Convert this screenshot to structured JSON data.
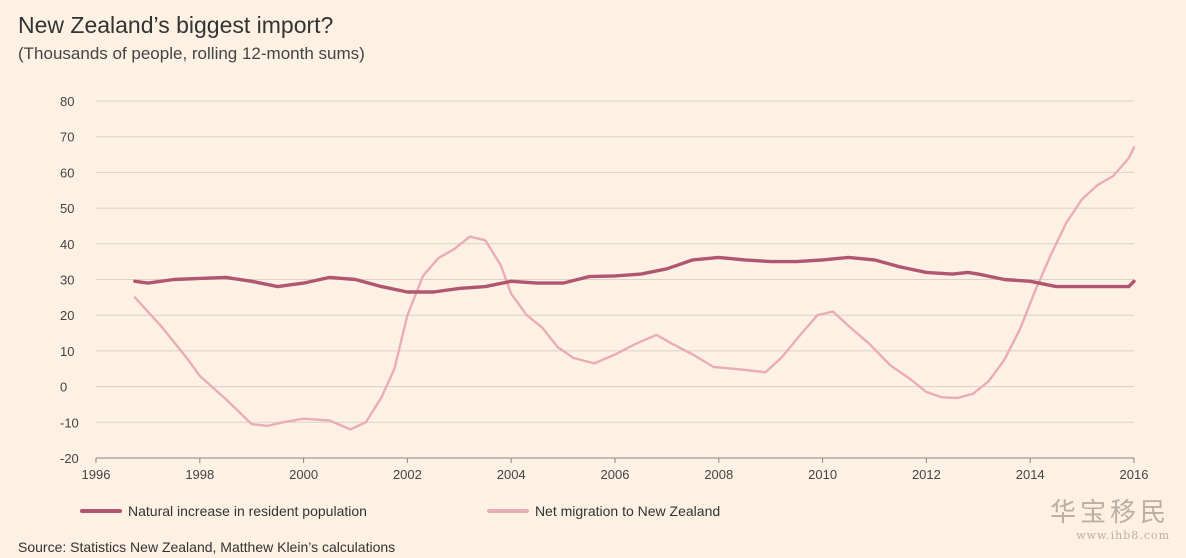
{
  "header": {
    "title": "New Zealand’s biggest import?",
    "subtitle": "(Thousands of people, rolling 12-month sums)"
  },
  "legend": {
    "natural": "Natural increase in resident population",
    "migration": "Net migration to New Zealand"
  },
  "source": "Source: Statistics New Zealand, Matthew Klein’s calculations",
  "watermark": {
    "main": "华宝移民",
    "url": "www.ihb8.com"
  },
  "colors": {
    "natural": "#b05670",
    "migration": "#eaadb5",
    "grid": "#d8d2c8",
    "axis": "#888888"
  },
  "chart_data": {
    "type": "line",
    "title": "New Zealand’s biggest import?",
    "subtitle": "(Thousands of people, rolling 12-month sums)",
    "xlim": [
      1996,
      2016
    ],
    "ylim": [
      -20,
      80
    ],
    "yticks": [
      -20,
      -10,
      0,
      10,
      20,
      30,
      40,
      50,
      60,
      70,
      80
    ],
    "xticks": [
      1996,
      1998,
      2000,
      2002,
      2004,
      2006,
      2008,
      2010,
      2012,
      2014,
      2016
    ],
    "grid": true,
    "legend_position": "bottom",
    "series": [
      {
        "name": "Natural increase in resident population",
        "color": "#b05670",
        "points": [
          [
            1996.75,
            29.5
          ],
          [
            1997.0,
            29
          ],
          [
            1997.5,
            30
          ],
          [
            1998.0,
            30.3
          ],
          [
            1998.5,
            30.6
          ],
          [
            1999.0,
            29.5
          ],
          [
            1999.5,
            28
          ],
          [
            2000.0,
            29
          ],
          [
            2000.5,
            30.6
          ],
          [
            2001.0,
            30
          ],
          [
            2001.5,
            28
          ],
          [
            2002.0,
            26.5
          ],
          [
            2002.5,
            26.5
          ],
          [
            2003.0,
            27.5
          ],
          [
            2003.5,
            28
          ],
          [
            2004.0,
            29.5
          ],
          [
            2004.5,
            29
          ],
          [
            2005.0,
            29
          ],
          [
            2005.5,
            30.8
          ],
          [
            2006.0,
            31
          ],
          [
            2006.5,
            31.5
          ],
          [
            2007.0,
            33
          ],
          [
            2007.5,
            35.5
          ],
          [
            2008.0,
            36.2
          ],
          [
            2008.5,
            35.5
          ],
          [
            2009.0,
            35
          ],
          [
            2009.5,
            35
          ],
          [
            2010.0,
            35.5
          ],
          [
            2010.5,
            36.2
          ],
          [
            2011.0,
            35.5
          ],
          [
            2011.5,
            33.5
          ],
          [
            2012.0,
            32
          ],
          [
            2012.5,
            31.5
          ],
          [
            2012.8,
            32
          ],
          [
            2013.0,
            31.5
          ],
          [
            2013.5,
            30
          ],
          [
            2014.0,
            29.5
          ],
          [
            2014.5,
            28
          ],
          [
            2015.0,
            28
          ],
          [
            2015.5,
            28
          ],
          [
            2015.9,
            28
          ],
          [
            2016.0,
            29.5
          ]
        ]
      },
      {
        "name": "Net migration to New Zealand",
        "color": "#eaadb5",
        "points": [
          [
            1996.75,
            25
          ],
          [
            1997.25,
            17
          ],
          [
            1997.75,
            8
          ],
          [
            1998.0,
            3
          ],
          [
            1998.5,
            -3.5
          ],
          [
            1999.0,
            -10.5
          ],
          [
            1999.3,
            -11
          ],
          [
            1999.6,
            -10
          ],
          [
            2000.0,
            -9
          ],
          [
            2000.5,
            -9.5
          ],
          [
            2000.9,
            -12
          ],
          [
            2001.2,
            -10
          ],
          [
            2001.5,
            -3
          ],
          [
            2001.75,
            5
          ],
          [
            2002.0,
            20
          ],
          [
            2002.3,
            31
          ],
          [
            2002.6,
            36
          ],
          [
            2002.9,
            38.5
          ],
          [
            2003.2,
            42
          ],
          [
            2003.5,
            41
          ],
          [
            2003.8,
            34
          ],
          [
            2004.0,
            26
          ],
          [
            2004.3,
            20
          ],
          [
            2004.6,
            16.5
          ],
          [
            2004.9,
            11
          ],
          [
            2005.2,
            8
          ],
          [
            2005.6,
            6.5
          ],
          [
            2006.0,
            9
          ],
          [
            2006.4,
            12
          ],
          [
            2006.8,
            14.5
          ],
          [
            2007.1,
            12
          ],
          [
            2007.5,
            9
          ],
          [
            2007.9,
            5.5
          ],
          [
            2008.3,
            5
          ],
          [
            2008.6,
            4.5
          ],
          [
            2008.9,
            4
          ],
          [
            2009.2,
            8
          ],
          [
            2009.6,
            15
          ],
          [
            2009.9,
            20
          ],
          [
            2010.2,
            21
          ],
          [
            2010.5,
            17
          ],
          [
            2010.9,
            12
          ],
          [
            2011.3,
            6
          ],
          [
            2011.7,
            2
          ],
          [
            2012.0,
            -1.5
          ],
          [
            2012.3,
            -3
          ],
          [
            2012.6,
            -3.2
          ],
          [
            2012.9,
            -2
          ],
          [
            2013.2,
            1.5
          ],
          [
            2013.5,
            7.5
          ],
          [
            2013.8,
            16
          ],
          [
            2014.1,
            27
          ],
          [
            2014.4,
            37
          ],
          [
            2014.7,
            46
          ],
          [
            2015.0,
            52.5
          ],
          [
            2015.3,
            56.5
          ],
          [
            2015.6,
            59
          ],
          [
            2015.9,
            64
          ],
          [
            2016.0,
            67
          ]
        ]
      }
    ]
  }
}
